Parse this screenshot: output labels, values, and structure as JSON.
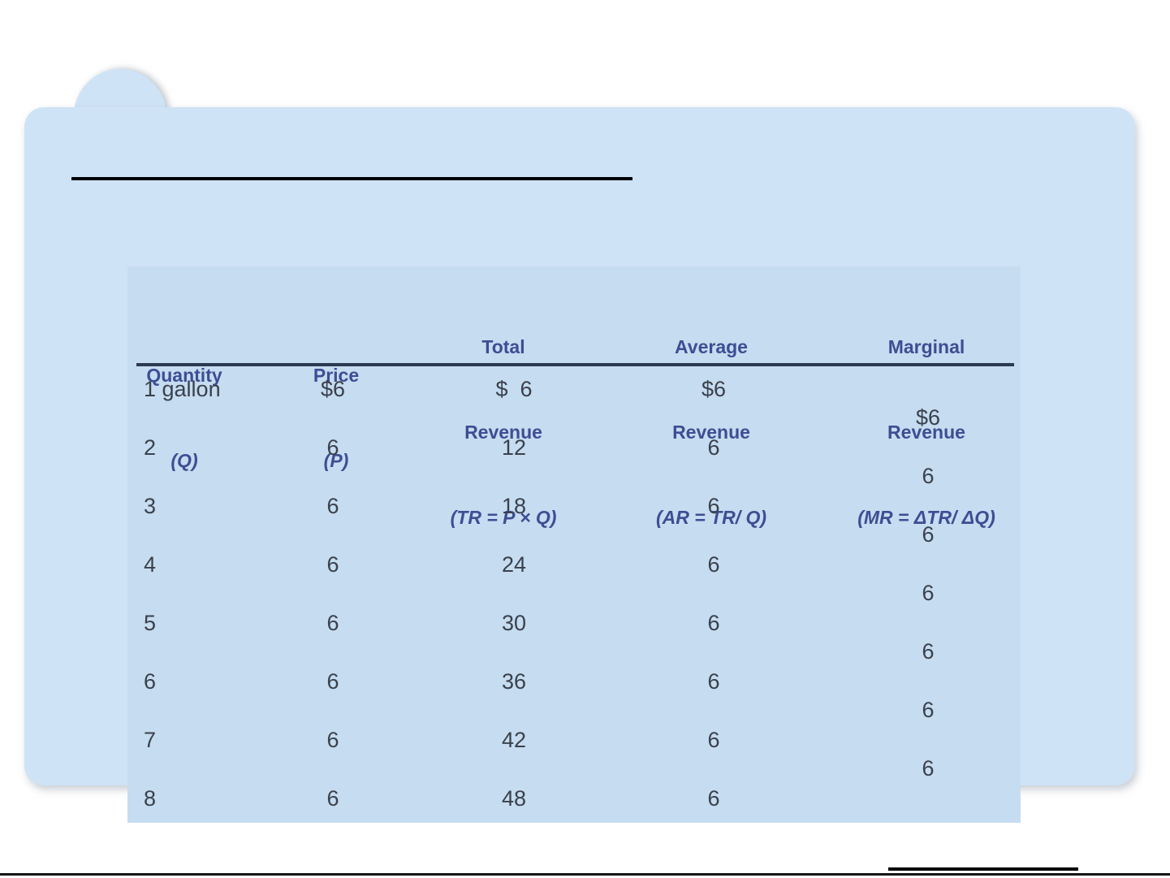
{
  "colors": {
    "page_bg": "#ffffff",
    "card_bg": "#cfe3f6",
    "table_bg": "#c6dcf0",
    "header_text": "#3d4e94",
    "header_rule": "#2c3a52",
    "data_text": "#3a414c",
    "black_rule": "#000000"
  },
  "table": {
    "header": {
      "col1": {
        "line1": "Quantity",
        "line2": "(Q)"
      },
      "col2": {
        "line1": "Price",
        "line2": "(P)"
      },
      "col3": {
        "line1": "Total",
        "line2": "Revenue",
        "line3": "(TR = P × Q)"
      },
      "col4": {
        "line1": "Average",
        "line2": "Revenue",
        "line3": "(AR = TR/ Q)"
      },
      "col5": {
        "line1": "Marginal",
        "line2": "Revenue",
        "line3": "(MR = ΔTR/ ΔQ)"
      }
    },
    "rows": [
      {
        "q": "1 gallon",
        "p": "$6",
        "tr": "$  6",
        "ar": "$6"
      },
      {
        "q": "2",
        "p": "6",
        "tr": "12",
        "ar": "6"
      },
      {
        "q": "3",
        "p": "6",
        "tr": "18",
        "ar": "6"
      },
      {
        "q": "4",
        "p": "6",
        "tr": "24",
        "ar": "6"
      },
      {
        "q": "5",
        "p": "6",
        "tr": "30",
        "ar": "6"
      },
      {
        "q": "6",
        "p": "6",
        "tr": "36",
        "ar": "6"
      },
      {
        "q": "7",
        "p": "6",
        "tr": "42",
        "ar": "6"
      },
      {
        "q": "8",
        "p": "6",
        "tr": "48",
        "ar": "6"
      }
    ],
    "marginal_values": [
      "$6",
      "6",
      "6",
      "6",
      "6",
      "6",
      "6"
    ]
  }
}
